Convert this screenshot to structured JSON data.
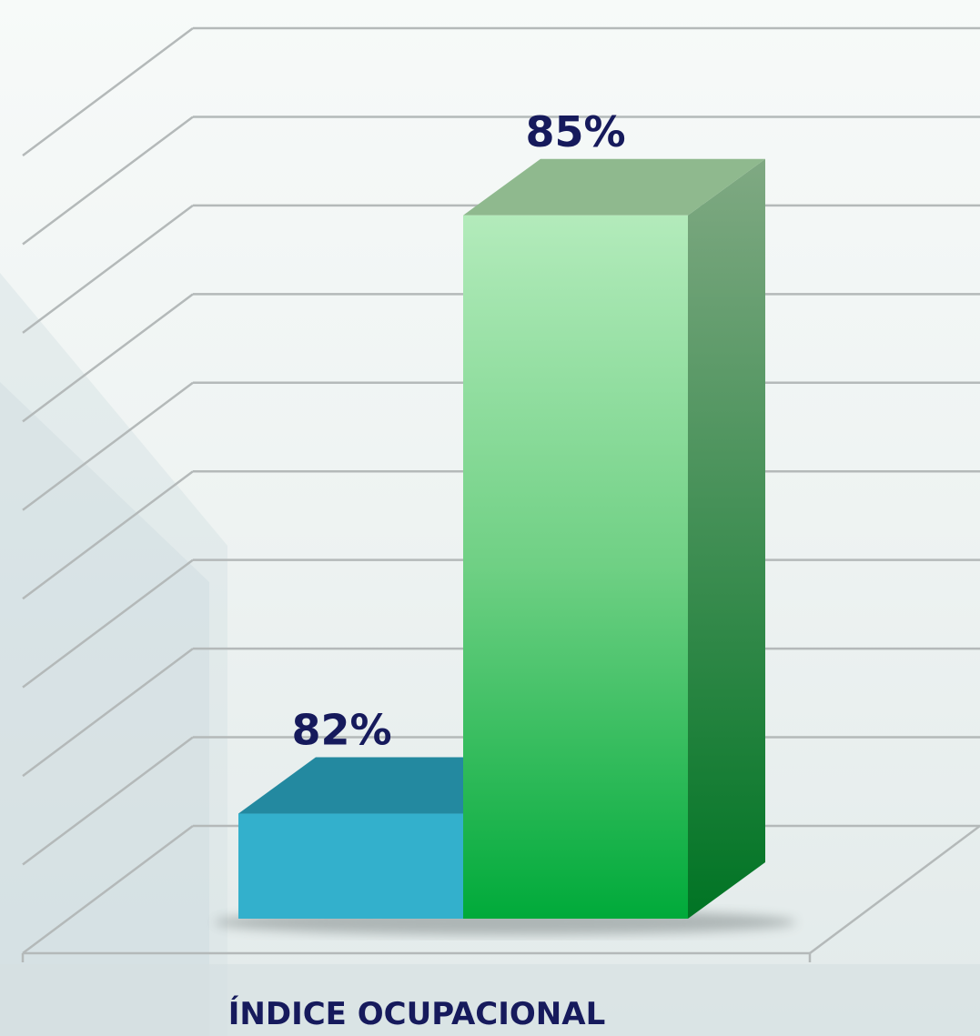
{
  "chart_data": {
    "type": "bar",
    "categories": [
      "ÍNDICE OCUPACIONAL"
    ],
    "series": [
      {
        "values": [
          82
        ],
        "color": "#33b0cc"
      },
      {
        "values": [
          85
        ],
        "color": "#22b24c"
      }
    ],
    "value_labels": [
      "82%",
      "85%"
    ],
    "ylim": [
      81.3,
      85.3
    ],
    "grid": true,
    "legend": "none",
    "label_color": "#161a5c",
    "style": "3d-column"
  }
}
